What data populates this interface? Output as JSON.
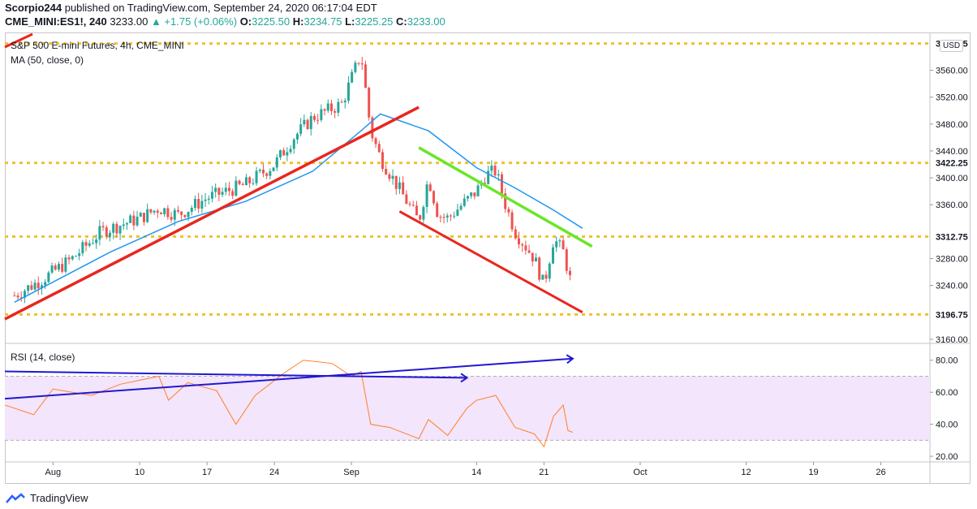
{
  "header": {
    "publisher": "Scorpio244",
    "published_text": "published on TradingView.com, September 24, 2020 06:17:04 EDT",
    "symbol": "CME_MINI:ES1!, 240",
    "last": "3233.00",
    "change": "▲ +1.75 (+0.06%)",
    "o_label": "O:",
    "o": "3225.50",
    "h_label": "H:",
    "h": "3234.75",
    "l_label": "L:",
    "l": "3225.25",
    "c_label": "C:",
    "c": "3233.00"
  },
  "legend": {
    "title": "S&P 500 E-mini Futures, 4h, CME_MINI",
    "ma": "MA (50, close, 0)",
    "rsi": "RSI (14, close)"
  },
  "currency": "USD",
  "footer": {
    "brand": "TradingView"
  },
  "colors": {
    "up": "#26a69a",
    "down": "#ef5350",
    "ma": "#2196f3",
    "rsi": "#ff7f2a",
    "support": "#e8271f",
    "resistance": "#6ae62a",
    "level": "#f0c030",
    "blue_trend": "#2018d0",
    "rsi_band": "#f3e5fb"
  },
  "chart_data": [
    {
      "type": "candlestick",
      "title": "S&P 500 E-mini Futures, 4h, CME_MINI",
      "ylim": [
        3155,
        3615
      ],
      "y_ticks": [
        "3560.00",
        "3520.00",
        "3480.00",
        "3440.00",
        "3400.00",
        "3360.00",
        "3280.00",
        "3240.00",
        "3160.00"
      ],
      "x_ticks": [
        "Aug",
        "10",
        "17",
        "24",
        "Sep",
        "14",
        "21",
        "Oct",
        "12",
        "19",
        "26"
      ],
      "levels": [
        {
          "label": "3599.75",
          "value": 3599.75
        },
        {
          "label": "3422.25",
          "value": 3422.25
        },
        {
          "label": "3312.75",
          "value": 3312.75
        },
        {
          "label": "3196.75",
          "value": 3196.75
        }
      ],
      "path": [
        {
          "date": "2020-07-28",
          "close": 3225
        },
        {
          "date": "2020-07-31",
          "close": 3250
        },
        {
          "date": "2020-08-03",
          "close": 3280
        },
        {
          "date": "2020-08-06",
          "close": 3320
        },
        {
          "date": "2020-08-10",
          "close": 3340
        },
        {
          "date": "2020-08-12",
          "close": 3355
        },
        {
          "date": "2020-08-14",
          "close": 3345
        },
        {
          "date": "2020-08-17",
          "close": 3370
        },
        {
          "date": "2020-08-19",
          "close": 3380
        },
        {
          "date": "2020-08-21",
          "close": 3390
        },
        {
          "date": "2020-08-24",
          "close": 3420
        },
        {
          "date": "2020-08-26",
          "close": 3460
        },
        {
          "date": "2020-08-28",
          "close": 3490
        },
        {
          "date": "2020-08-31",
          "close": 3510
        },
        {
          "date": "2020-09-02",
          "close": 3585
        },
        {
          "date": "2020-09-03",
          "close": 3470
        },
        {
          "date": "2020-09-04",
          "close": 3430
        },
        {
          "date": "2020-09-08",
          "close": 3335
        },
        {
          "date": "2020-09-09",
          "close": 3400
        },
        {
          "date": "2020-09-10",
          "close": 3345
        },
        {
          "date": "2020-09-11",
          "close": 3340
        },
        {
          "date": "2020-09-14",
          "close": 3380
        },
        {
          "date": "2020-09-15",
          "close": 3405
        },
        {
          "date": "2020-09-16",
          "close": 3410
        },
        {
          "date": "2020-09-17",
          "close": 3360
        },
        {
          "date": "2020-09-18",
          "close": 3320
        },
        {
          "date": "2020-09-20",
          "close": 3280
        },
        {
          "date": "2020-09-21",
          "close": 3240
        },
        {
          "date": "2020-09-22",
          "close": 3310
        },
        {
          "date": "2020-09-23",
          "close": 3290
        },
        {
          "date": "2020-09-24",
          "close": 3233
        }
      ],
      "ma_label": "MA (50, close, 0)",
      "ma": [
        {
          "date": "2020-07-28",
          "value": 3215
        },
        {
          "date": "2020-08-07",
          "value": 3290
        },
        {
          "date": "2020-08-14",
          "value": 3335
        },
        {
          "date": "2020-08-21",
          "value": 3365
        },
        {
          "date": "2020-08-28",
          "value": 3410
        },
        {
          "date": "2020-09-02",
          "value": 3470
        },
        {
          "date": "2020-09-04",
          "value": 3495
        },
        {
          "date": "2020-09-09",
          "value": 3470
        },
        {
          "date": "2020-09-14",
          "value": 3415
        },
        {
          "date": "2020-09-18",
          "value": 3385
        },
        {
          "date": "2020-09-22",
          "value": 3352
        },
        {
          "date": "2020-09-25",
          "value": 3325
        }
      ],
      "trendlines": [
        {
          "name": "support",
          "from": {
            "date": "2020-07-27",
            "value": 3190
          },
          "to": {
            "date": "2020-09-08",
            "value": 3505
          }
        },
        {
          "name": "channel_top",
          "from": {
            "date": "2020-09-08",
            "value": 3445
          },
          "to": {
            "date": "2020-09-26",
            "value": 3298
          }
        },
        {
          "name": "channel_bottom",
          "from": {
            "date": "2020-09-06",
            "value": 3350
          },
          "to": {
            "date": "2020-09-25",
            "value": 3200
          }
        }
      ]
    },
    {
      "type": "line",
      "title": "RSI (14, close)",
      "ylim": [
        17,
        90
      ],
      "y_ticks": [
        "80.00",
        "60.00",
        "40.00",
        "20.00"
      ],
      "band": [
        30,
        70
      ],
      "series": [
        {
          "name": "RSI (14, close)",
          "points": [
            {
              "date": "2020-07-27",
              "value": 52
            },
            {
              "date": "2020-07-30",
              "value": 46
            },
            {
              "date": "2020-08-01",
              "value": 62
            },
            {
              "date": "2020-08-05",
              "value": 58
            },
            {
              "date": "2020-08-08",
              "value": 65
            },
            {
              "date": "2020-08-12",
              "value": 70
            },
            {
              "date": "2020-08-13",
              "value": 55
            },
            {
              "date": "2020-08-15",
              "value": 66
            },
            {
              "date": "2020-08-18",
              "value": 61
            },
            {
              "date": "2020-08-20",
              "value": 40
            },
            {
              "date": "2020-08-22",
              "value": 58
            },
            {
              "date": "2020-08-25",
              "value": 72
            },
            {
              "date": "2020-08-27",
              "value": 80
            },
            {
              "date": "2020-08-30",
              "value": 78
            },
            {
              "date": "2020-09-01",
              "value": 70
            },
            {
              "date": "2020-09-02",
              "value": 73
            },
            {
              "date": "2020-09-03",
              "value": 40
            },
            {
              "date": "2020-09-05",
              "value": 38
            },
            {
              "date": "2020-09-08",
              "value": 31
            },
            {
              "date": "2020-09-09",
              "value": 43
            },
            {
              "date": "2020-09-11",
              "value": 33
            },
            {
              "date": "2020-09-13",
              "value": 50
            },
            {
              "date": "2020-09-14",
              "value": 55
            },
            {
              "date": "2020-09-16",
              "value": 58
            },
            {
              "date": "2020-09-17",
              "value": 48
            },
            {
              "date": "2020-09-18",
              "value": 38
            },
            {
              "date": "2020-09-20",
              "value": 34
            },
            {
              "date": "2020-09-21",
              "value": 26
            },
            {
              "date": "2020-09-22",
              "value": 45
            },
            {
              "date": "2020-09-23",
              "value": 52
            },
            {
              "date": "2020-09-23T12",
              "value": 36
            },
            {
              "date": "2020-09-24",
              "value": 35
            }
          ]
        }
      ],
      "trendlines": [
        {
          "name": "rsi_top",
          "from": {
            "date": "2020-07-27",
            "value": 73
          },
          "to": {
            "date": "2020-09-13",
            "value": 69
          }
        },
        {
          "name": "rsi_rising",
          "from": {
            "date": "2020-07-27",
            "value": 56
          },
          "to": {
            "date": "2020-09-24",
            "value": 81
          }
        }
      ]
    }
  ]
}
